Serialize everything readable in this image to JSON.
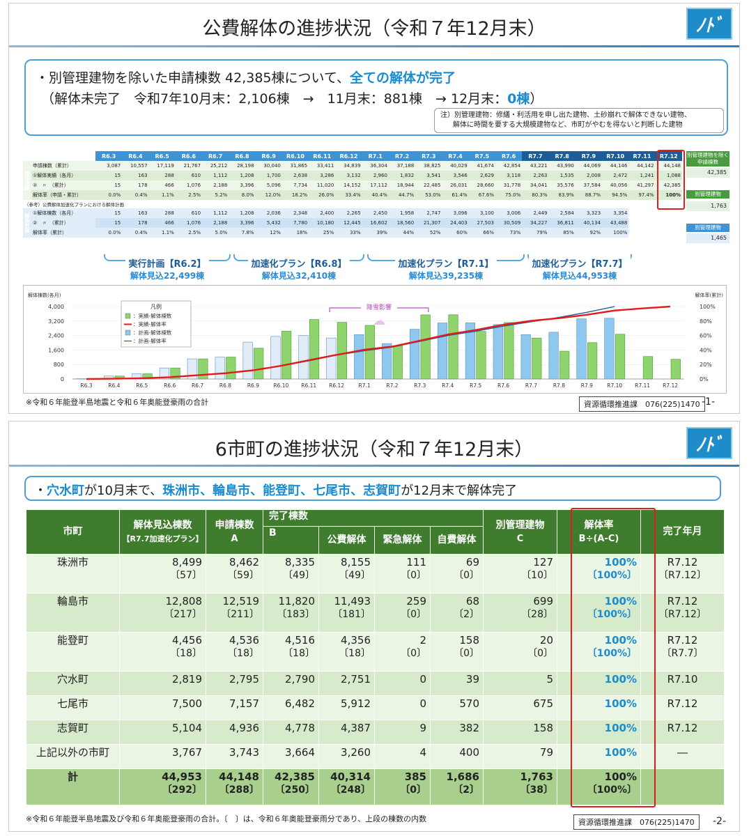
{
  "slide1": {
    "title": "公費解体の進捗状況（令和７年12月末）",
    "logo": "ﾉﾄﾞ",
    "summary_line1_pre": "・別管理建物を除いた申請棟数 42,385棟について、",
    "summary_line1_hl": "全ての解体が完了",
    "summary_line2_pre": "（解体未完了　令和7年10月末：2,106棟　→　11月末：881棟　→ 12月末：",
    "summary_line2_hl": "0棟",
    "summary_line2_post": "）",
    "note_line1": "注）別管理建物：修繕・利活用を申し出た建物、土砂崩れで解体できない建物、",
    "note_line2": "解体に時間を要する大規模建物など、市町がやむを得ないと判断した建物",
    "months": [
      "R6.3",
      "R6.4",
      "R6.5",
      "R6.6",
      "R6.7",
      "R6.8",
      "R6.9",
      "R6.10",
      "R6.11",
      "R6.12",
      "R7.1",
      "R7.2",
      "R7.3",
      "R7.4",
      "R7.5",
      "R7.6",
      "R7.7",
      "R7.8",
      "R7.9",
      "R7.10",
      "R7.11",
      "R7.12"
    ],
    "actual_cat": "解体実績",
    "actual_rows": [
      {
        "label": "申請棟数（累計）",
        "values": [
          "3,087",
          "10,557",
          "17,119",
          "21,767",
          "25,212",
          "28,198",
          "30,040",
          "31,865",
          "33,411",
          "34,839",
          "36,304",
          "37,188",
          "38,825",
          "40,029",
          "41,674",
          "42,854",
          "43,221",
          "43,990",
          "44,069",
          "44,146",
          "44,142",
          "44,148"
        ]
      },
      {
        "label": "①解体実績（各月）",
        "values": [
          "15",
          "163",
          "288",
          "610",
          "1,112",
          "1,208",
          "1,700",
          "2,638",
          "3,286",
          "3,132",
          "2,960",
          "1,832",
          "3,541",
          "3,546",
          "2,629",
          "3,118",
          "2,263",
          "1,535",
          "2,008",
          "2,472",
          "1,241",
          "1,088"
        ]
      },
      {
        "label": "②　〃　（累計）",
        "values": [
          "15",
          "178",
          "466",
          "1,076",
          "2,188",
          "3,396",
          "5,096",
          "7,734",
          "11,020",
          "14,152",
          "17,112",
          "18,944",
          "22,485",
          "26,031",
          "28,660",
          "31,778",
          "34,041",
          "35,576",
          "37,584",
          "40,056",
          "41,297",
          "42,385"
        ]
      },
      {
        "label": "解体率（申請・累計）",
        "values": [
          "0.0%",
          "0.4%",
          "1.1%",
          "2.5%",
          "5.2%",
          "8.0%",
          "12.0%",
          "18.2%",
          "26.0%",
          "33.4%",
          "40.4%",
          "44.7%",
          "53.0%",
          "61.4%",
          "67.6%",
          "75.0%",
          "80.3%",
          "83.9%",
          "88.7%",
          "94.5%",
          "97.4%",
          "100%"
        ]
      }
    ],
    "plan_caption": "（参考）公費解体加速化プランにおける解体計画",
    "plan_cat": "解体計画",
    "plan_rows": [
      {
        "label": "①解体棟数（各月）",
        "values": [
          "15",
          "163",
          "288",
          "610",
          "1,112",
          "1,208",
          "2,036",
          "2,348",
          "2,400",
          "2,265",
          "2,450",
          "1,958",
          "2,747",
          "3,096",
          "3,100",
          "3,006",
          "2,449",
          "2,584",
          "3,323",
          "3,354",
          "",
          ""
        ]
      },
      {
        "label": "②　〃　（累計）",
        "values": [
          "15",
          "178",
          "466",
          "1,076",
          "2,188",
          "3,396",
          "5,432",
          "7,780",
          "10,180",
          "12,445",
          "16,602",
          "18,560",
          "21,307",
          "24,403",
          "27,503",
          "30,509",
          "34,227",
          "36,811",
          "40,134",
          "43,488",
          "",
          ""
        ]
      },
      {
        "label": "解体率（累計）",
        "values": [
          "0.0%",
          "0.4%",
          "1.1%",
          "2.5%",
          "5.0%",
          "7.8%",
          "12%",
          "18%",
          "25%",
          "33%",
          "39%",
          "44%",
          "52%",
          "60%",
          "66%",
          "73%",
          "79%",
          "85%",
          "92%",
          "100%",
          "",
          ""
        ]
      }
    ],
    "side": [
      {
        "head": "別管理建物を除く申請棟数",
        "value": "42,385"
      },
      {
        "head": "別管理建物",
        "value": "1,763"
      },
      {
        "head": "別管理建物",
        "value": "1,465"
      }
    ],
    "phases": [
      {
        "name": "実行計画【R6.2】",
        "est": "解体見込22,499棟"
      },
      {
        "name": "加速化プラン【R6.8】",
        "est": "解体見込32,410棟"
      },
      {
        "name": "加速化プラン【R7.1】",
        "est": "解体見込39,235棟"
      },
      {
        "name": "加速化プラン【R7.7】",
        "est": "解体見込44,953棟"
      }
    ],
    "footnote": "※令和６年能登半島地震と令和６年奥能登豪雨の合計",
    "contact": "資源循環推進課　076(225)1470",
    "page": "-1-"
  },
  "chart_data": {
    "type": "bar",
    "title": "",
    "ylabel": "解体棟数(各月)",
    "y2label": "解体率(累計)",
    "categories": [
      "R6.3",
      "R6.4",
      "R6.5",
      "R6.6",
      "R6.7",
      "R6.8",
      "R6.9",
      "R6.10",
      "R6.11",
      "R6.12",
      "R7.1",
      "R7.2",
      "R7.3",
      "R7.4",
      "R7.5",
      "R7.6",
      "R7.7",
      "R7.8",
      "R7.9",
      "R7.10",
      "R7.11",
      "R7.12"
    ],
    "ylim": [
      0,
      4000
    ],
    "yticks": [
      "4,000",
      "3,200",
      "2,400",
      "1,600",
      "800",
      "0"
    ],
    "y2lim": [
      0,
      100
    ],
    "y2ticks": [
      "100%",
      "80%",
      "60%",
      "40%",
      "20%",
      "0%"
    ],
    "series": [
      {
        "name": "実績-解体棟数",
        "kind": "bar",
        "color": "#8fd46f",
        "values": [
          15,
          163,
          288,
          610,
          1112,
          1208,
          1700,
          2638,
          3286,
          3132,
          2960,
          1832,
          3541,
          3546,
          2629,
          3118,
          2263,
          1535,
          2008,
          2472,
          1241,
          1088
        ]
      },
      {
        "name": "実績-解体率",
        "kind": "line",
        "color": "#e31b1b",
        "values": [
          0.0,
          0.4,
          1.1,
          2.5,
          5.2,
          8.0,
          12.0,
          18.2,
          26.0,
          33.4,
          40.4,
          44.7,
          53.0,
          61.4,
          67.6,
          75.0,
          80.3,
          83.9,
          88.7,
          94.5,
          97.4,
          100
        ]
      },
      {
        "name": "計画-解体棟数",
        "kind": "bar",
        "color": "#8ec8ef",
        "values": [
          15,
          163,
          288,
          610,
          1112,
          1208,
          2036,
          2348,
          2400,
          2265,
          2450,
          1958,
          2747,
          3096,
          3100,
          3006,
          2449,
          2584,
          3323,
          3354,
          null,
          null
        ]
      },
      {
        "name": "計画-解体率",
        "kind": "line",
        "color": "#1d5d97",
        "values": [
          0.0,
          0.4,
          1.1,
          2.5,
          5.0,
          7.8,
          12,
          18,
          25,
          33,
          39,
          44,
          52,
          60,
          66,
          73,
          79,
          85,
          92,
          100,
          null,
          null
        ]
      }
    ],
    "legend_title": "凡例",
    "legend": [
      "：実績-解体棟数",
      "：実績-解体率",
      "：計画-解体棟数",
      "：計画-解体率"
    ],
    "annotation": "降雪影響"
  },
  "slide2": {
    "title": "6市町の進捗状況（令和７年12月末）",
    "logo": "ﾉﾄﾞ",
    "summary_hl1": "穴水町",
    "summary_t1": "が10月末で、",
    "summary_hl2": "珠洲市、輪島市、能登町、七尾市、志賀町",
    "summary_t2": "が12月末で解体完了",
    "summary_dot": "・",
    "headers": {
      "city": "市町",
      "est": "解体見込棟数",
      "est_sub": "【R7.7加速化プラン】",
      "app": "申請棟数",
      "app_sub": "A",
      "done": "完了棟数",
      "done_sub": "B",
      "public": "公費解体",
      "urgent": "緊急解体",
      "self": "自費解体",
      "sep": "別管理建物",
      "sep_sub": "C",
      "rate": "解体率",
      "rate_sub": "B÷(A-C)",
      "month": "完了年月"
    },
    "rows": [
      {
        "name": "珠洲市",
        "est": "8,499",
        "est2": "〔57〕",
        "app": "8,462",
        "app2": "〔59〕",
        "done": "8,335",
        "done2": "〔49〕",
        "pub": "8,155",
        "pub2": "〔49〕",
        "urg": "111",
        "urg2": "〔0〕",
        "self": "69",
        "self2": "〔0〕",
        "sep": "127",
        "sep2": "〔10〕",
        "rate": "100%",
        "rate2": "〔100%〕",
        "ym": "R7.12",
        "ym2": "〔R7.12〕"
      },
      {
        "name": "輪島市",
        "est": "12,808",
        "est2": "〔217〕",
        "app": "12,519",
        "app2": "〔211〕",
        "done": "11,820",
        "done2": "〔183〕",
        "pub": "11,493",
        "pub2": "〔181〕",
        "urg": "259",
        "urg2": "〔0〕",
        "self": "68",
        "self2": "〔2〕",
        "sep": "699",
        "sep2": "〔28〕",
        "rate": "100%",
        "rate2": "〔100%〕",
        "ym": "R7.12",
        "ym2": "〔R7.12〕"
      },
      {
        "name": "能登町",
        "est": "4,456",
        "est2": "〔18〕",
        "app": "4,536",
        "app2": "〔18〕",
        "done": "4,516",
        "done2": "〔18〕",
        "pub": "4,356",
        "pub2": "〔18〕",
        "urg": "2",
        "urg2": "〔0〕",
        "self": "158",
        "self2": "〔0〕",
        "sep": "20",
        "sep2": "〔0〕",
        "rate": "100%",
        "rate2": "〔100%〕",
        "ym": "R7.12",
        "ym2": "〔R7.7〕"
      },
      {
        "name": "穴水町",
        "est": "2,819",
        "app": "2,795",
        "done": "2,790",
        "pub": "2,751",
        "urg": "0",
        "self": "39",
        "sep": "5",
        "rate": "100%",
        "ym": "R7.10"
      },
      {
        "name": "七尾市",
        "est": "7,500",
        "app": "7,157",
        "done": "6,482",
        "pub": "5,912",
        "urg": "0",
        "self": "570",
        "sep": "675",
        "rate": "100%",
        "ym": "R7.12"
      },
      {
        "name": "志賀町",
        "est": "5,104",
        "app": "4,936",
        "done": "4,778",
        "pub": "4,387",
        "urg": "9",
        "self": "382",
        "sep": "158",
        "rate": "100%",
        "ym": "R7.12"
      },
      {
        "name": "上記以外の市町",
        "est": "3,767",
        "app": "3,743",
        "done": "3,664",
        "pub": "3,260",
        "urg": "4",
        "self": "400",
        "sep": "79",
        "rate": "100%",
        "ym": "―"
      }
    ],
    "total": {
      "name": "計",
      "est": "44,953",
      "est2": "〔292〕",
      "app": "44,148",
      "app2": "〔288〕",
      "done": "42,385",
      "done2": "〔250〕",
      "pub": "40,314",
      "pub2": "〔248〕",
      "urg": "385",
      "urg2": "〔0〕",
      "self": "1,686",
      "self2": "〔2〕",
      "sep": "1,763",
      "sep2": "〔38〕",
      "rate": "100%",
      "rate2": "〔100%〕"
    },
    "footnote": "※令和６年能登半島地震及び令和６年奥能登豪雨の合計。〔　〕は、令和６年奥能登豪雨分であり、上段の棟数の内数",
    "contact": "資源循環推進課　076(225)1470",
    "page": "-2-"
  }
}
